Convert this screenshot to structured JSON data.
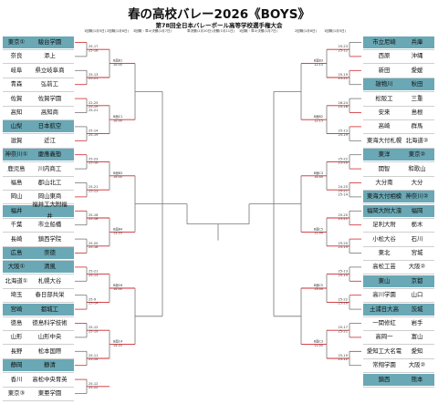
{
  "title": "春の高校バレー2026《BOYS》",
  "subtitle": "第78回全日本バレーボール高等学校選手権大会",
  "headers": {
    "r1": "1回戦(1月5日)",
    "r2": "2回戦(1月6日)",
    "r3": "3回戦・準々決勝(1月7日)",
    "sf": "準決勝(1月10日)",
    "fin": "決勝(1月11日)"
  },
  "left_teams": [
    {
      "pref": "東京①",
      "school": "駿台学園",
      "hl": true
    },
    {
      "pref": "奈良",
      "school": "添上",
      "hl": false
    },
    {
      "pref": "岐阜",
      "school": "県立岐阜商",
      "hl": false
    },
    {
      "pref": "青森",
      "school": "弘前工",
      "hl": false
    },
    {
      "pref": "佐賀",
      "school": "佐賀学園",
      "hl": false
    },
    {
      "pref": "高知",
      "school": "高知商",
      "hl": false
    },
    {
      "pref": "山梨",
      "school": "日本航空",
      "hl": true
    },
    {
      "pref": "滋賀",
      "school": "近江",
      "hl": false
    },
    {
      "pref": "神奈川①",
      "school": "慶應義塾",
      "hl": true
    },
    {
      "pref": "鹿児島",
      "school": "川内商工",
      "hl": false
    },
    {
      "pref": "福島",
      "school": "郡山北工",
      "hl": false
    },
    {
      "pref": "岡山",
      "school": "岡山東商",
      "hl": false
    },
    {
      "pref": "福井",
      "school": "福井工大附福井",
      "hl": true
    },
    {
      "pref": "千葉",
      "school": "市立船橋",
      "hl": false
    },
    {
      "pref": "長崎",
      "school": "鎮西学院",
      "hl": false
    },
    {
      "pref": "広島",
      "school": "崇徳",
      "hl": true
    },
    {
      "pref": "大阪①",
      "school": "清風",
      "hl": true
    },
    {
      "pref": "北海道①",
      "school": "札幌大谷",
      "hl": false
    },
    {
      "pref": "埼玉",
      "school": "春日部共栄",
      "hl": false
    },
    {
      "pref": "宮崎",
      "school": "都城工",
      "hl": true
    },
    {
      "pref": "徳島",
      "school": "徳島科学技術",
      "hl": false
    },
    {
      "pref": "山形",
      "school": "山形中央",
      "hl": false
    },
    {
      "pref": "長野",
      "school": "松本国際",
      "hl": false
    },
    {
      "pref": "静岡",
      "school": "静清",
      "hl": true
    },
    {
      "pref": "香川",
      "school": "高松中央育英",
      "hl": false
    },
    {
      "pref": "東京③",
      "school": "東亜学園",
      "hl": false
    }
  ],
  "right_teams": [
    {
      "school": "市立尼崎",
      "pref": "兵庫",
      "hl": true
    },
    {
      "school": "西原",
      "pref": "沖縄",
      "hl": false
    },
    {
      "school": "新田",
      "pref": "愛媛",
      "hl": false
    },
    {
      "school": "雄物川",
      "pref": "秋田",
      "hl": true
    },
    {
      "school": "松阪工",
      "pref": "三重",
      "hl": false
    },
    {
      "school": "安来",
      "pref": "島根",
      "hl": false
    },
    {
      "school": "高崎",
      "pref": "群馬",
      "hl": false
    },
    {
      "school": "東海大付札幌",
      "pref": "北海道②",
      "hl": false
    },
    {
      "school": "東洋",
      "pref": "東京②",
      "hl": true
    },
    {
      "school": "開智",
      "pref": "和歌山",
      "hl": false
    },
    {
      "school": "大分南",
      "pref": "大分",
      "hl": false
    },
    {
      "school": "東海大付相模",
      "pref": "神奈川②",
      "hl": true
    },
    {
      "school": "福岡大附大濠",
      "pref": "福岡",
      "hl": true
    },
    {
      "school": "足利大附",
      "pref": "栃木",
      "hl": false
    },
    {
      "school": "小松大谷",
      "pref": "石川",
      "hl": false
    },
    {
      "school": "東北",
      "pref": "宮城",
      "hl": false
    },
    {
      "school": "高松工芸",
      "pref": "大阪②",
      "hl": false
    },
    {
      "school": "東山",
      "pref": "京都",
      "hl": true
    },
    {
      "school": "高川学園",
      "pref": "山口",
      "hl": false
    },
    {
      "school": "土浦日大高",
      "pref": "茨城",
      "hl": true
    },
    {
      "school": "一関修紅",
      "pref": "岩手",
      "hl": false
    },
    {
      "school": "高岡一",
      "pref": "富山",
      "hl": false
    },
    {
      "school": "愛知工大名電",
      "pref": "愛知",
      "hl": false
    },
    {
      "school": "常翔学園",
      "pref": "大阪②",
      "hl": false
    },
    {
      "school": "鎮西",
      "pref": "熊本",
      "hl": true
    },
    {
      "school": "",
      "pref": "",
      "hl": false
    }
  ],
  "left_scores": [
    {
      "s": "25-17\n25-16",
      "n": "1"
    },
    {
      "s": "25-13\n25-21",
      "n": "2"
    },
    {
      "s": "22-25\n25-19\n25-21",
      "n": "3"
    },
    {
      "s": "25-14\n25-19",
      "n": "4"
    },
    {
      "s": "25-23\n25-16",
      "n": "5"
    },
    {
      "s": "25-21\n25-23",
      "n": "6"
    },
    {
      "s": "25-16\n25-18",
      "n": "7"
    },
    {
      "s": "25-20\n25-18",
      "n": "8"
    },
    {
      "s": "25-21\n25-13",
      "n": "9"
    },
    {
      "s": "25-9\n25-14",
      "n": "10"
    },
    {
      "s": "25-12\n25-19",
      "n": "11"
    },
    {
      "s": "25-11\n25-14",
      "n": "12"
    },
    {
      "s": "25-12\n25-22",
      "n": "13"
    },
    {
      "s": "25-21\n25-22",
      "n": "14"
    }
  ],
  "right_scores": [
    {
      "s": "25-23\n25-12",
      "n": "1"
    },
    {
      "s": "25-19\n25-21",
      "n": "2"
    },
    {
      "s": "26-24\n25-18",
      "n": "3"
    },
    {
      "s": "25-13\n25-19",
      "n": "4"
    },
    {
      "s": "25-22\n25-20",
      "n": "5"
    },
    {
      "s": "24-25\n25-21\n25-14",
      "n": "6"
    },
    {
      "s": "25-20\n25-21",
      "n": "7"
    },
    {
      "s": "25-20\n25-19",
      "n": "8"
    },
    {
      "s": "25-13\n25-15",
      "n": "9"
    },
    {
      "s": "25-22\n25-20",
      "n": "10"
    },
    {
      "s": "25-17\n25-21",
      "n": "11"
    },
    {
      "s": "25-19\n25-12",
      "n": "12"
    },
    {
      "s": "25-20\n25-17",
      "n": "13"
    },
    {
      "s": "25-16\n25-18",
      "n": "14"
    }
  ],
  "left_match_labels": [
    "B面B1\n10:00",
    "B面C1\n10:00",
    "B面B3\n14:00",
    "B面B4\n13:20",
    "B面C6\n14:00",
    "B面C4\n14:20"
  ],
  "right_match_labels": [
    "B面B3\n12:15",
    "B面B2\n12:15",
    "B面C3\n14:40",
    "B面C5\n11:00",
    "B面C5\n13:00",
    "B面C3\n11:00"
  ],
  "colors": {
    "highlight": "#6aa8b5",
    "win_line": "#d0282e",
    "line": "#777777"
  }
}
